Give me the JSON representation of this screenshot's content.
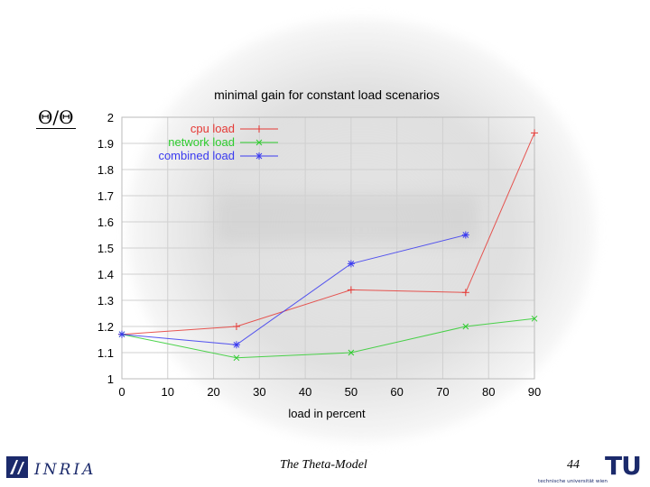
{
  "slide": {
    "ratio_label": "Θ/Θ",
    "footer_title": "The Theta-Model",
    "page_number": "44",
    "logos": {
      "left": "INRIA",
      "right": "TU",
      "right_subtitle": "technische universität wien"
    }
  },
  "chart_data": {
    "type": "line",
    "title": "minimal gain for constant load scenarios",
    "xlabel": "load in percent",
    "ylabel": "",
    "xlim": [
      0,
      90
    ],
    "ylim": [
      1,
      2
    ],
    "x_ticks": [
      "0",
      "10",
      "20",
      "30",
      "40",
      "50",
      "60",
      "70",
      "80",
      "90"
    ],
    "y_ticks": [
      "1",
      "1.1",
      "1.2",
      "1.3",
      "1.4",
      "1.5",
      "1.6",
      "1.7",
      "1.8",
      "1.9",
      "2"
    ],
    "grid": true,
    "legend_position": "top-left",
    "series": [
      {
        "name": "cpu load",
        "color": "#e53935",
        "marker": "plus",
        "x": [
          0,
          25,
          50,
          75,
          90
        ],
        "y": [
          1.17,
          1.2,
          1.34,
          1.33,
          1.94
        ]
      },
      {
        "name": "network load",
        "color": "#2ecc2e",
        "marker": "cross",
        "x": [
          0,
          25,
          50,
          75,
          90
        ],
        "y": [
          1.17,
          1.08,
          1.1,
          1.2,
          1.23
        ]
      },
      {
        "name": "combined load",
        "color": "#3a3af0",
        "marker": "star",
        "x": [
          0,
          25,
          50,
          75
        ],
        "y": [
          1.17,
          1.13,
          1.44,
          1.55
        ]
      }
    ]
  }
}
